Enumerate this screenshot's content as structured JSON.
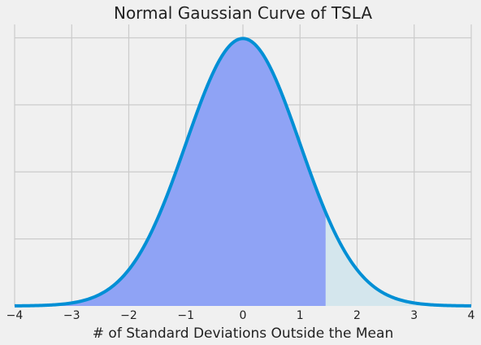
{
  "chart_data": {
    "type": "area",
    "title": "Normal Gaussian Curve of TSLA",
    "xlabel": "# of Standard Deviations Outside the Mean",
    "ylabel": "",
    "xlim": [
      -4,
      4
    ],
    "ylim": [
      0,
      0.42
    ],
    "x_ticks": [
      -4,
      -3,
      -2,
      -1,
      0,
      1,
      2,
      3,
      4
    ],
    "x_tick_labels": [
      "−4",
      "−3",
      "−2",
      "−1",
      "0",
      "1",
      "2",
      "3",
      "4"
    ],
    "y_gridlines": [
      0.1,
      0.2,
      0.3,
      0.4
    ],
    "y_tick_labels_shown": false,
    "grid": true,
    "curve": {
      "function": "standard normal pdf",
      "mean": 0,
      "std": 1
    },
    "shaded_left": {
      "from": -4,
      "to": 1.45
    },
    "shaded_right": {
      "from": 1.45,
      "to": 4
    },
    "colors": {
      "background": "#f0f0f0",
      "grid": "#cbcbcb",
      "line": "#008fd5",
      "fill_left": "#8fa3f5",
      "fill_right": "#d4e6ed"
    }
  }
}
